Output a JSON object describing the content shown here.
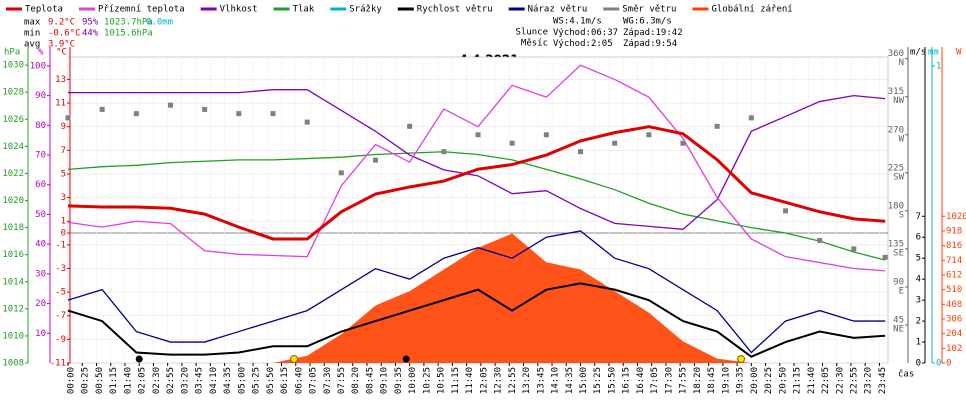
{
  "chart_data": {
    "type": "line",
    "title": "4.4.2021",
    "time_label": "čas",
    "legend": [
      {
        "name": "Teplota",
        "color": "#e00000"
      },
      {
        "name": "Přízemní teplota",
        "color": "#e040e0"
      },
      {
        "name": "Vlhkost",
        "color": "#8000c0"
      },
      {
        "name": "Tlak",
        "color": "#20a020"
      },
      {
        "name": "Srážky",
        "color": "#00b0d0"
      },
      {
        "name": "Rychlost větru",
        "color": "#000000"
      },
      {
        "name": "Náraz větru",
        "color": "#000090"
      },
      {
        "name": "Směr větru",
        "color": "#808080"
      },
      {
        "name": "Globální záření",
        "color": "#ff4000"
      }
    ],
    "stats": {
      "colors": [
        "#e00000",
        "#8000c0",
        "#20a020",
        "#00b0d0"
      ],
      "rows": [
        {
          "label": "max",
          "values": [
            "9.2°C",
            "95%",
            "1023.7hPa",
            "0.0mm"
          ]
        },
        {
          "label": "min",
          "values": [
            "-0.6°C",
            "44%",
            "1015.6hPa"
          ]
        },
        {
          "label": "avg",
          "values": [
            "3.9°C"
          ]
        }
      ]
    },
    "wind_info": [
      "WS:4.1m/s",
      "WG:6.3m/s"
    ],
    "sun": {
      "label": "Slunce",
      "rise_label": "Východ:",
      "rise": "06:37",
      "set_label": "Západ:",
      "set": "19:42"
    },
    "moon": {
      "label": "Měsíc",
      "rise_label": "Východ:",
      "rise": "2:05",
      "set_label": "Západ:",
      "set": "9:54"
    },
    "xticks": [
      "00:00",
      "00:25",
      "00:50",
      "01:15",
      "01:40",
      "02:05",
      "02:30",
      "02:55",
      "03:20",
      "03:45",
      "04:10",
      "04:35",
      "05:00",
      "05:25",
      "05:50",
      "06:15",
      "06:40",
      "07:05",
      "07:30",
      "07:55",
      "08:20",
      "08:45",
      "09:10",
      "09:35",
      "10:00",
      "10:25",
      "10:50",
      "11:15",
      "11:40",
      "12:05",
      "12:30",
      "12:55",
      "13:20",
      "13:45",
      "14:10",
      "14:35",
      "15:00",
      "15:25",
      "15:50",
      "16:15",
      "16:40",
      "17:05",
      "17:30",
      "17:55",
      "18:20",
      "18:45",
      "19:10",
      "19:35",
      "20:00",
      "20:25",
      "20:50",
      "21:15",
      "21:40",
      "22:05",
      "22:30",
      "22:55",
      "23:20",
      "23:45"
    ],
    "axes": {
      "pressure": {
        "label": "hPa",
        "color": "#20a020",
        "lim": [
          1008,
          1030.6
        ],
        "ticks": [
          1008,
          1010,
          1012,
          1014,
          1016,
          1018,
          1020,
          1022,
          1024,
          1026,
          1028,
          1030
        ]
      },
      "humidity": {
        "label": "%",
        "color": "#c000c0",
        "lim": [
          0,
          103
        ],
        "ticks": [
          10,
          20,
          30,
          40,
          50,
          60,
          70,
          80,
          90,
          100
        ]
      },
      "temp": {
        "label": "°C",
        "color": "#e00000",
        "lim": [
          -11,
          14.9
        ],
        "ticks": [
          -11,
          -9,
          -7,
          -5,
          -3,
          -1,
          0,
          1,
          3,
          5,
          7,
          9,
          11,
          13
        ]
      },
      "direction": {
        "color": "#606060",
        "lim": [
          0,
          362
        ],
        "ticks": [
          {
            "value": 45,
            "label": "45",
            "dir": "NE"
          },
          {
            "value": 90,
            "label": "90",
            "dir": "E"
          },
          {
            "value": 135,
            "label": "135",
            "dir": "SE"
          },
          {
            "value": 180,
            "label": "180",
            "dir": "S"
          },
          {
            "value": 225,
            "label": "225",
            "dir": "SW"
          },
          {
            "value": 270,
            "label": "270",
            "dir": "W"
          },
          {
            "value": 315,
            "label": "315",
            "dir": "NW"
          },
          {
            "value": 360,
            "label": "360",
            "dir": "N"
          }
        ]
      },
      "wind": {
        "label": "m/s",
        "color": "#000000",
        "lim": [
          0,
          14.6
        ],
        "ticks": [
          0,
          1,
          2,
          3,
          4,
          5,
          6,
          7
        ]
      },
      "rain": {
        "label": "mm",
        "color": "#00b0d0",
        "lim": [
          0,
          1.03
        ],
        "ticks": [
          0,
          1
        ]
      },
      "solar": {
        "label": "W",
        "color": "#ff4000",
        "lim": [
          0,
          2127
        ],
        "ticks": [
          0,
          102,
          204,
          306,
          408,
          510,
          612,
          714,
          816,
          918,
          1020
        ]
      }
    },
    "x": [
      "00:00",
      "01:00",
      "02:00",
      "03:00",
      "04:00",
      "05:00",
      "06:00",
      "07:00",
      "08:00",
      "09:00",
      "10:00",
      "11:00",
      "12:00",
      "13:00",
      "14:00",
      "15:00",
      "16:00",
      "17:00",
      "18:00",
      "19:00",
      "20:00",
      "21:00",
      "22:00",
      "23:00",
      "23:55"
    ],
    "series": [
      {
        "name": "Globální záření",
        "kind": "area",
        "axis": "solar",
        "color": "#ff4000",
        "values": [
          0,
          0,
          0,
          0,
          0,
          0,
          0,
          50,
          200,
          400,
          500,
          650,
          800,
          900,
          700,
          650,
          500,
          350,
          150,
          30,
          0,
          0,
          0,
          0,
          0
        ]
      },
      {
        "name": "Tlak",
        "kind": "line",
        "axis": "pressure",
        "color": "#20a020",
        "values": [
          1022.3,
          1022.5,
          1022.6,
          1022.8,
          1022.9,
          1023.0,
          1023.0,
          1023.1,
          1023.2,
          1023.4,
          1023.5,
          1023.6,
          1023.4,
          1023.0,
          1022.3,
          1021.6,
          1020.8,
          1019.8,
          1019.0,
          1018.5,
          1018.0,
          1017.6,
          1017.0,
          1016.2,
          1015.6
        ]
      },
      {
        "name": "Vlhkost",
        "kind": "line",
        "axis": "humidity",
        "color": "#8000c0",
        "values": [
          91,
          91,
          91,
          91,
          91,
          91,
          92,
          92,
          85,
          78,
          70,
          65,
          63,
          57,
          58,
          52,
          47,
          46,
          45,
          55,
          78,
          83,
          88,
          90,
          89
        ]
      },
      {
        "name": "Přízemní teplota",
        "kind": "line",
        "axis": "temp",
        "color": "#e040e0",
        "values": [
          0.9,
          0.5,
          1.0,
          0.8,
          -1.5,
          -1.8,
          -1.9,
          -2.0,
          4.0,
          7.5,
          6.0,
          10.5,
          9.0,
          12.5,
          11.5,
          14.2,
          13.0,
          11.5,
          8.0,
          3.0,
          -0.5,
          -2.0,
          -2.5,
          -3.0,
          -3.2
        ]
      },
      {
        "name": "Teplota",
        "kind": "line",
        "axis": "temp",
        "color": "#e00000",
        "width": 3,
        "values": [
          2.3,
          2.2,
          2.2,
          2.1,
          1.6,
          0.5,
          -0.5,
          -0.5,
          1.8,
          3.3,
          3.9,
          4.4,
          5.4,
          5.8,
          6.6,
          7.8,
          8.5,
          9.0,
          8.4,
          6.2,
          3.4,
          2.6,
          1.8,
          1.2,
          1.0
        ]
      },
      {
        "name": "Náraz větru",
        "kind": "line",
        "axis": "wind",
        "color": "#000090",
        "values": [
          3.0,
          3.5,
          1.5,
          1.0,
          1.0,
          1.5,
          2.0,
          2.5,
          3.5,
          4.5,
          4.0,
          5.0,
          5.5,
          5.0,
          6.0,
          6.3,
          5.0,
          4.5,
          3.5,
          2.5,
          0.5,
          2.0,
          2.5,
          2.0,
          2.0
        ]
      },
      {
        "name": "Rychlost větru",
        "kind": "line",
        "axis": "wind",
        "color": "#000000",
        "width": 2,
        "values": [
          2.5,
          2.0,
          0.5,
          0.4,
          0.4,
          0.5,
          0.8,
          0.8,
          1.5,
          2.0,
          2.5,
          3.0,
          3.5,
          2.5,
          3.5,
          3.8,
          3.5,
          3.0,
          2.0,
          1.5,
          0.3,
          1.0,
          1.5,
          1.2,
          1.3
        ]
      },
      {
        "name": "Směr větru",
        "kind": "points",
        "axis": "direction",
        "color": "#808080",
        "values": [
          290,
          300,
          295,
          305,
          300,
          295,
          295,
          285,
          225,
          240,
          280,
          250,
          270,
          260,
          270,
          250,
          260,
          270,
          260,
          280,
          290,
          180,
          145,
          135,
          125
        ]
      }
    ]
  }
}
